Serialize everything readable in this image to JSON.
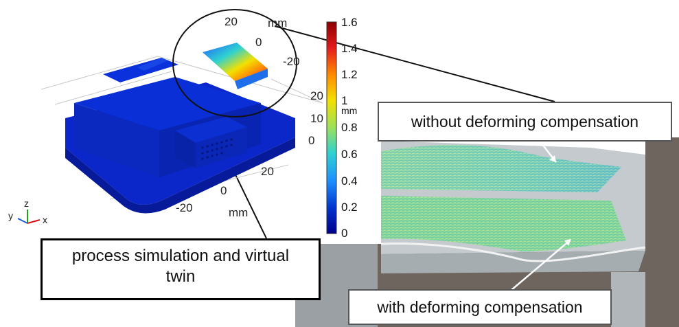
{
  "colorbar": {
    "ticks": [
      "1.6",
      "1.4",
      "1.2",
      "1",
      "0.8",
      "0.6",
      "0.4",
      "0.2",
      "0"
    ],
    "unit": "mm",
    "colors": [
      "#8b0000",
      "#e41a1c",
      "#ff8c00",
      "#f3e000",
      "#9be15d",
      "#2fd1d0",
      "#1e90ff",
      "#0033cc",
      "#00008b"
    ]
  },
  "axes3d": {
    "x_ticks": [
      "-20",
      "0",
      "20"
    ],
    "x_unit": "mm",
    "y_ticks": [
      "20",
      "0",
      "-20"
    ],
    "y_unit": "mm",
    "z_ticks": [
      "20",
      "10",
      "0"
    ],
    "orientation": {
      "y": "y",
      "z": "z",
      "x": "x"
    }
  },
  "callouts": {
    "without": "without deforming compensation",
    "with": "with deforming compensation",
    "process_line1": "process simulation and virtual",
    "process_line2": "twin"
  },
  "colors": {
    "part_blue": "#0a2fd6",
    "hot_red": "#d7191c",
    "photo_bg": "#6d655e",
    "photo_plate": "#b8bfc3"
  }
}
